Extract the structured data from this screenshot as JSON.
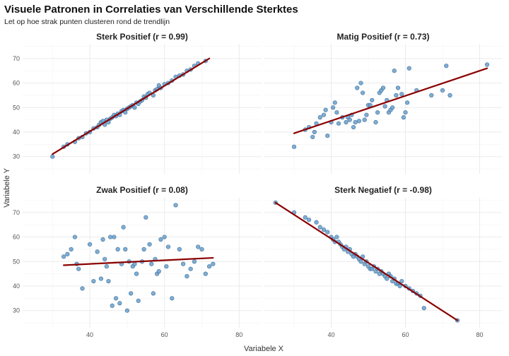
{
  "chart_data": {
    "type": "scatter",
    "title": "Visuele Patronen in Correlaties van Verschillende Sterktes",
    "subtitle": "Let op hoe strak punten clusteren rond de trendlijn",
    "xlabel": "Variabele X",
    "ylabel": "Variabele Y",
    "xlim": [
      22,
      86
    ],
    "ylim": [
      23,
      76
    ],
    "x_ticks": [
      40,
      60,
      80
    ],
    "y_ticks": [
      30,
      40,
      50,
      60,
      70
    ],
    "grid": true,
    "colors": {
      "point": "#6a9fcb",
      "point_edge": "#3d6f99",
      "trend": "#8b0000",
      "grid": "#ebebeb"
    },
    "panels": [
      {
        "title": "Sterk Positief (r = 0.99)",
        "trend": [
          [
            30,
            31
          ],
          [
            72,
            70
          ]
        ],
        "points": [
          [
            30,
            30
          ],
          [
            33,
            34
          ],
          [
            34,
            35
          ],
          [
            36,
            36
          ],
          [
            37,
            37.5
          ],
          [
            38,
            38
          ],
          [
            39,
            39.5
          ],
          [
            40,
            40
          ],
          [
            41,
            41.5
          ],
          [
            42,
            42
          ],
          [
            42.5,
            43
          ],
          [
            43,
            44
          ],
          [
            43.5,
            44.5
          ],
          [
            44,
            43
          ],
          [
            44.5,
            45
          ],
          [
            45,
            44
          ],
          [
            45.5,
            45.5
          ],
          [
            46,
            46
          ],
          [
            46.5,
            47
          ],
          [
            47,
            46.5
          ],
          [
            47.5,
            47.5
          ],
          [
            48,
            47
          ],
          [
            48.5,
            48.5
          ],
          [
            49,
            49
          ],
          [
            49.5,
            48
          ],
          [
            50,
            49.5
          ],
          [
            50.5,
            50
          ],
          [
            51,
            50.5
          ],
          [
            51.5,
            51
          ],
          [
            52,
            50
          ],
          [
            52.5,
            52
          ],
          [
            53,
            51.5
          ],
          [
            53.5,
            52.5
          ],
          [
            54,
            53
          ],
          [
            54.5,
            54.5
          ],
          [
            55,
            54
          ],
          [
            55.5,
            55.5
          ],
          [
            56,
            56
          ],
          [
            57,
            55
          ],
          [
            57.5,
            57
          ],
          [
            58,
            57.5
          ],
          [
            58.5,
            59
          ],
          [
            59,
            58
          ],
          [
            60,
            59.5
          ],
          [
            61,
            60
          ],
          [
            62,
            61
          ],
          [
            63,
            62.5
          ],
          [
            64,
            63
          ],
          [
            65,
            63.5
          ],
          [
            66,
            65
          ],
          [
            67,
            65.5
          ],
          [
            68,
            67
          ],
          [
            69,
            68
          ],
          [
            71,
            69
          ]
        ]
      },
      {
        "title": "Matig Positief (r = 0.73)",
        "trend": [
          [
            30,
            39.5
          ],
          [
            82,
            66
          ]
        ],
        "points": [
          [
            30,
            34
          ],
          [
            33,
            41
          ],
          [
            34,
            42
          ],
          [
            35,
            38
          ],
          [
            35.5,
            40
          ],
          [
            36,
            43.5
          ],
          [
            37,
            46
          ],
          [
            38,
            47
          ],
          [
            38.5,
            49
          ],
          [
            39,
            38.5
          ],
          [
            40,
            44
          ],
          [
            40.5,
            50
          ],
          [
            41,
            52
          ],
          [
            41.5,
            48
          ],
          [
            42,
            43.5
          ],
          [
            43,
            46
          ],
          [
            44,
            44
          ],
          [
            44.5,
            46
          ],
          [
            45,
            45
          ],
          [
            45.5,
            47
          ],
          [
            46,
            42
          ],
          [
            46.5,
            44
          ],
          [
            47,
            58
          ],
          [
            47.5,
            44.5
          ],
          [
            48,
            60
          ],
          [
            48.5,
            56
          ],
          [
            49,
            45
          ],
          [
            49.5,
            47
          ],
          [
            50,
            51
          ],
          [
            50.5,
            51
          ],
          [
            51,
            53
          ],
          [
            52,
            44
          ],
          [
            52.5,
            48
          ],
          [
            53,
            56
          ],
          [
            53.5,
            57
          ],
          [
            54,
            58
          ],
          [
            54.5,
            50.5
          ],
          [
            55,
            53
          ],
          [
            55.5,
            48
          ],
          [
            56,
            49
          ],
          [
            56.5,
            50
          ],
          [
            57,
            65
          ],
          [
            57.5,
            55
          ],
          [
            58,
            58
          ],
          [
            59,
            55.5
          ],
          [
            59.5,
            46
          ],
          [
            60,
            48
          ],
          [
            60.5,
            52
          ],
          [
            61,
            66
          ],
          [
            63,
            57
          ],
          [
            67,
            55
          ],
          [
            70,
            57
          ],
          [
            71,
            67
          ],
          [
            72,
            55
          ],
          [
            82,
            67.5
          ]
        ]
      },
      {
        "title": "Zwak Positief (r = 0.08)",
        "trend": [
          [
            33,
            48.5
          ],
          [
            73,
            51.5
          ]
        ],
        "points": [
          [
            33,
            52
          ],
          [
            34,
            53
          ],
          [
            35,
            55
          ],
          [
            36,
            60
          ],
          [
            36.5,
            49
          ],
          [
            37,
            47
          ],
          [
            38,
            39
          ],
          [
            40,
            57
          ],
          [
            41,
            42
          ],
          [
            42,
            54
          ],
          [
            43,
            43
          ],
          [
            43.5,
            59
          ],
          [
            44,
            51
          ],
          [
            44.5,
            48
          ],
          [
            45,
            42
          ],
          [
            45.5,
            60
          ],
          [
            46,
            32
          ],
          [
            46.5,
            60
          ],
          [
            47,
            35
          ],
          [
            47.5,
            55
          ],
          [
            48,
            33
          ],
          [
            48.5,
            49
          ],
          [
            49,
            64
          ],
          [
            49.5,
            55
          ],
          [
            50,
            30
          ],
          [
            50.5,
            50
          ],
          [
            51,
            37
          ],
          [
            51.5,
            48
          ],
          [
            52,
            49
          ],
          [
            52.5,
            45
          ],
          [
            53,
            34
          ],
          [
            54,
            50
          ],
          [
            54.5,
            55
          ],
          [
            55,
            68
          ],
          [
            56,
            57
          ],
          [
            56.5,
            49
          ],
          [
            57,
            37
          ],
          [
            57.5,
            51
          ],
          [
            58,
            45
          ],
          [
            58.5,
            46
          ],
          [
            59,
            59
          ],
          [
            60,
            60
          ],
          [
            60.5,
            48
          ],
          [
            61,
            56
          ],
          [
            62,
            35
          ],
          [
            63,
            73
          ],
          [
            64,
            55
          ],
          [
            65,
            49
          ],
          [
            66,
            44
          ],
          [
            67,
            47
          ],
          [
            68,
            50
          ],
          [
            69,
            56
          ],
          [
            70,
            55
          ],
          [
            71,
            45
          ],
          [
            72,
            48
          ],
          [
            73,
            49
          ]
        ]
      },
      {
        "title": "Sterk Negatief (r = -0.98)",
        "trend": [
          [
            25,
            74
          ],
          [
            74,
            26
          ]
        ],
        "points": [
          [
            25,
            74
          ],
          [
            30,
            70
          ],
          [
            33,
            68
          ],
          [
            34,
            67
          ],
          [
            36,
            66
          ],
          [
            37,
            64
          ],
          [
            38,
            63
          ],
          [
            39,
            62
          ],
          [
            40,
            60
          ],
          [
            40.5,
            59
          ],
          [
            41,
            58
          ],
          [
            41.5,
            60
          ],
          [
            42,
            58
          ],
          [
            42.5,
            57
          ],
          [
            43,
            56
          ],
          [
            43.5,
            55
          ],
          [
            44,
            56
          ],
          [
            44.5,
            54
          ],
          [
            45,
            55
          ],
          [
            45.5,
            53
          ],
          [
            46,
            52
          ],
          [
            46.5,
            53
          ],
          [
            47,
            52
          ],
          [
            47.5,
            51
          ],
          [
            48,
            50
          ],
          [
            48.5,
            52
          ],
          [
            49,
            49
          ],
          [
            49.5,
            50
          ],
          [
            50,
            48
          ],
          [
            50.5,
            47
          ],
          [
            51,
            47
          ],
          [
            51.5,
            48
          ],
          [
            52,
            46
          ],
          [
            52.5,
            47
          ],
          [
            53,
            45
          ],
          [
            53.5,
            46
          ],
          [
            54,
            45
          ],
          [
            54.5,
            44
          ],
          [
            55,
            43
          ],
          [
            55.5,
            45
          ],
          [
            56,
            44
          ],
          [
            56.5,
            42
          ],
          [
            57,
            43
          ],
          [
            57.5,
            41
          ],
          [
            58,
            41
          ],
          [
            58.5,
            40
          ],
          [
            59,
            42
          ],
          [
            60,
            40
          ],
          [
            61,
            39
          ],
          [
            62,
            38
          ],
          [
            63,
            37
          ],
          [
            64,
            36
          ],
          [
            65,
            31
          ],
          [
            74,
            26
          ]
        ]
      }
    ]
  }
}
